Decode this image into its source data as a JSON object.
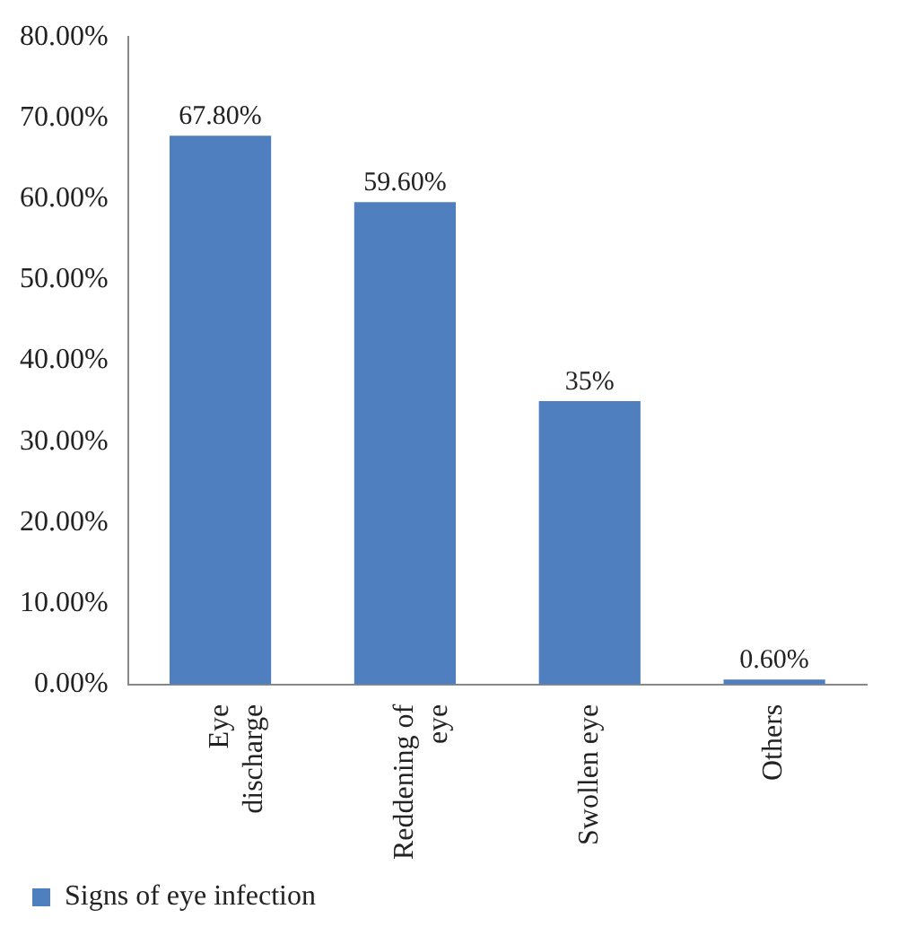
{
  "chart_data": {
    "type": "bar",
    "categories": [
      "Eye discharge",
      "Reddening of eye",
      "Swollen eye",
      "Others"
    ],
    "series": [
      {
        "name": "Signs of eye infection",
        "color": "#4f7fbe",
        "values": [
          67.8,
          59.6,
          35,
          0.6
        ],
        "value_labels": [
          "67.80%",
          "59.60%",
          "35%",
          "0.60%"
        ]
      }
    ],
    "ylim": [
      0,
      80
    ],
    "yticks": [
      {
        "value": 0,
        "label": "0.00%"
      },
      {
        "value": 10,
        "label": "10.00%"
      },
      {
        "value": 20,
        "label": "20.00%"
      },
      {
        "value": 30,
        "label": "30.00%"
      },
      {
        "value": 40,
        "label": "40.00%"
      },
      {
        "value": 50,
        "label": "50.00%"
      },
      {
        "value": 60,
        "label": "60.00%"
      },
      {
        "value": 70,
        "label": "70.00%"
      },
      {
        "value": 80,
        "label": "80.00%"
      }
    ],
    "grid": false,
    "legend": "bottom left"
  }
}
